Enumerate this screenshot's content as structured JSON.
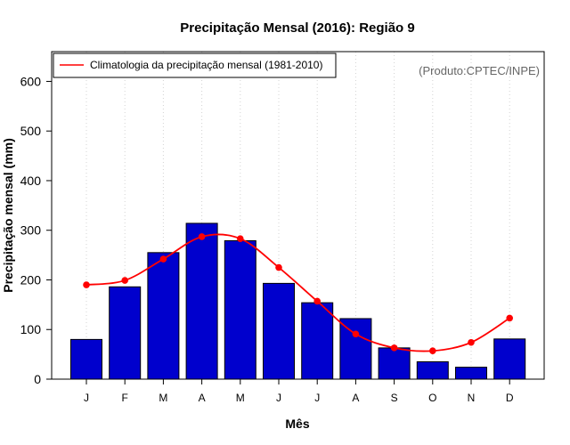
{
  "chart_data": {
    "type": "bar",
    "title": "Precipitação Mensal (2016): Região 9",
    "xlabel": "Mês",
    "ylabel": "Precipitação mensal (mm)",
    "categories": [
      "J",
      "F",
      "M",
      "A",
      "M",
      "J",
      "J",
      "A",
      "S",
      "O",
      "N",
      "D"
    ],
    "yticks": [
      "0",
      "100",
      "200",
      "300",
      "400",
      "500",
      "600"
    ],
    "ylim": [
      0,
      660
    ],
    "series": [
      {
        "name": "Precipitação mensal 2016",
        "type": "bar",
        "color": "#0000cd",
        "values": [
          80,
          186,
          255,
          314,
          279,
          193,
          154,
          122,
          63,
          35,
          24,
          81
        ]
      },
      {
        "name": "Climatologia da precipitação mensal (1981-2010)",
        "type": "line",
        "color": "#ff0000",
        "values": [
          190,
          199,
          242,
          287,
          283,
          225,
          157,
          91,
          63,
          57,
          74,
          123
        ]
      }
    ],
    "legend": {
      "label": "Climatologia da precipitação mensal (1981-2010)",
      "position": "top-left"
    },
    "credit": "(Produto:CPTEC/INPE)",
    "grid": "vertical dotted"
  }
}
